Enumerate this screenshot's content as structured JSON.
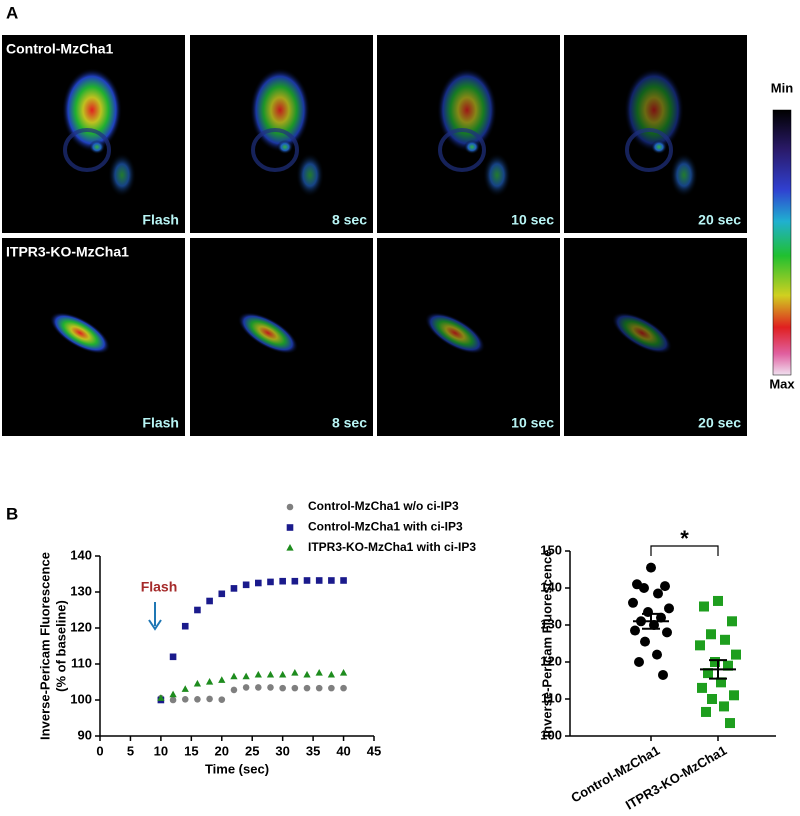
{
  "panel_a": {
    "label": "A",
    "rows": [
      {
        "name": "Control-MzCha1",
        "frames": [
          "Flash",
          "8 sec",
          "10 sec",
          "20 sec"
        ]
      },
      {
        "name": "ITPR3-KO-MzCha1",
        "frames": [
          "Flash",
          "8 sec",
          "10 sec",
          "20 sec"
        ]
      }
    ],
    "colorbar": {
      "min": "Min",
      "max": "Max"
    }
  },
  "panel_b": {
    "label": "B"
  },
  "chart_data": [
    {
      "type": "scatter",
      "xlabel": "Time (sec)",
      "ylabel": [
        "Inverse-Pericam Fluorescence",
        "(% of baseline)"
      ],
      "annotation": "Flash",
      "x": [
        10,
        12,
        14,
        16,
        18,
        20,
        22,
        24,
        26,
        28,
        30,
        32,
        34,
        36,
        38,
        40
      ],
      "series": [
        {
          "name": "Control-MzCha1 w/o ci-IP3",
          "color": "#7f7f7f",
          "marker": "circle",
          "values": [
            100.5,
            100,
            100.2,
            100.2,
            100.3,
            100.1,
            102.8,
            103.5,
            103.5,
            103.5,
            103.3,
            103.3,
            103.3,
            103.3,
            103.3,
            103.3
          ]
        },
        {
          "name": "Control-MzCha1 with ci-IP3",
          "color": "#1a1a8c",
          "marker": "square",
          "values": [
            100,
            112,
            120.5,
            125,
            127.5,
            129.5,
            131,
            132,
            132.5,
            132.8,
            133,
            133,
            133.2,
            133.2,
            133.2,
            133.2
          ]
        },
        {
          "name": "ITPR3-KO-MzCha1 with ci-IP3",
          "color": "#1e8c1e",
          "marker": "triangle",
          "values": [
            100.5,
            101.5,
            103,
            104.5,
            105,
            105.5,
            106.5,
            106.5,
            107,
            107,
            107,
            107.5,
            107,
            107.5,
            107,
            107.5
          ]
        }
      ],
      "xlim": [
        0,
        45
      ],
      "xticks": [
        0,
        5,
        10,
        15,
        20,
        25,
        30,
        35,
        40,
        45
      ],
      "ylim": [
        90,
        140
      ],
      "yticks": [
        90,
        100,
        110,
        120,
        130,
        140
      ]
    },
    {
      "type": "dot",
      "ylabel": "Inverse-Pericam Fluorescence",
      "significance": "*",
      "groups": [
        {
          "label": "Control-MzCha1",
          "color": "#000000",
          "marker": "circle",
          "values": [
            145.5,
            141,
            140.5,
            140,
            138.5,
            136,
            134.5,
            133.5,
            132,
            131,
            130,
            128.5,
            128,
            125.5,
            122,
            120,
            116.5
          ],
          "mean": 131,
          "sem": 2
        },
        {
          "label": "ITPR3-KO-MzCha1",
          "color": "#1e9e1e",
          "marker": "square",
          "values": [
            136.5,
            135,
            131,
            127.5,
            126,
            124.5,
            122,
            120,
            119,
            117,
            114.5,
            113,
            111,
            110,
            108,
            106.5,
            103.5
          ],
          "mean": 118,
          "sem": 2.5
        }
      ],
      "ylim": [
        100,
        150
      ],
      "yticks": [
        100,
        110,
        120,
        130,
        140,
        150
      ]
    }
  ]
}
